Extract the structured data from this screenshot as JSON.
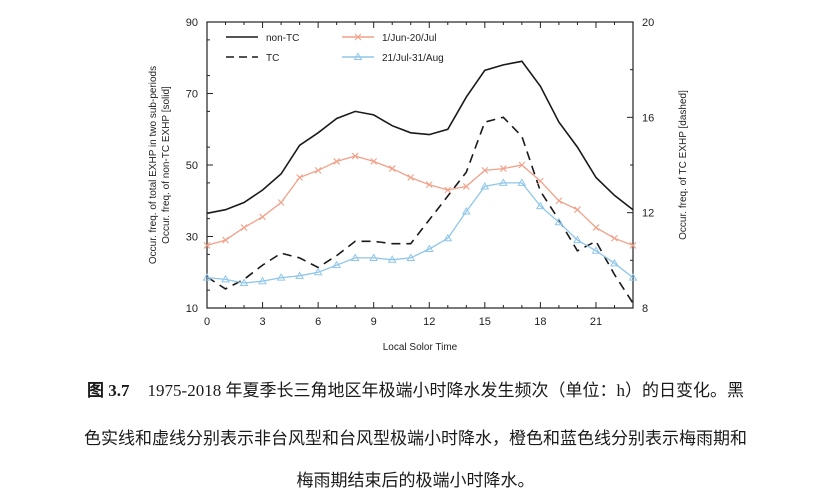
{
  "chart_data": {
    "type": "line",
    "xlabel": "Local Solor Time",
    "ylabel_left_lines": [
      "Occur. freq. of total EXHP in two sub-periods",
      "Occur. freq. of non-TC EXHP [solid]"
    ],
    "ylabel_right": "Occur. freq. of TC EXHP [dashed]",
    "xlim": [
      0,
      23
    ],
    "ylim_left": [
      10,
      90
    ],
    "ylim_right": [
      8,
      20
    ],
    "xticks": [
      0,
      3,
      6,
      9,
      12,
      15,
      18,
      21
    ],
    "yticks_left": [
      10,
      30,
      50,
      70,
      90
    ],
    "yticks_right": [
      8,
      12,
      16,
      20
    ],
    "x": [
      0,
      1,
      2,
      3,
      4,
      5,
      6,
      7,
      8,
      9,
      10,
      11,
      12,
      13,
      14,
      15,
      16,
      17,
      18,
      19,
      20,
      21,
      22,
      23
    ],
    "series": [
      {
        "name": "non-TC",
        "axis": "left",
        "color": "#1a1a1a",
        "style": "solid",
        "values": [
          36.5,
          37.5,
          39.5,
          43,
          47.5,
          55.5,
          59,
          63,
          65,
          64,
          61,
          59,
          58.5,
          60,
          69,
          76.5,
          78,
          79,
          72,
          62,
          55,
          46.5,
          41.5,
          37.5
        ]
      },
      {
        "name": "TC",
        "axis": "right",
        "color": "#1a1a1a",
        "style": "dashed",
        "values": [
          9.3,
          8.8,
          9.2,
          9.8,
          10.3,
          10.1,
          9.7,
          10.2,
          10.8,
          10.8,
          10.7,
          10.7,
          11.7,
          12.7,
          13.7,
          15.8,
          16,
          15.2,
          12.9,
          11.7,
          10.4,
          10.8,
          9.4,
          8.2
        ]
      },
      {
        "name": "1/Jun-20/Jul",
        "axis": "left",
        "color": "#f2a18a",
        "style": "solid-marker",
        "values": [
          27.5,
          29,
          32.5,
          35.5,
          39.5,
          46.5,
          48.5,
          51,
          52.5,
          51,
          49,
          46.5,
          44.5,
          43,
          44,
          48.5,
          49,
          50,
          45.5,
          40,
          37.5,
          32.5,
          29.5,
          27.5
        ]
      },
      {
        "name": "21/Jul-31/Aug",
        "axis": "left",
        "color": "#8fc6ea",
        "style": "solid-marker",
        "values": [
          18.5,
          18,
          17,
          17.5,
          18.5,
          19,
          20,
          22,
          24,
          24,
          23.5,
          24,
          26.5,
          29.5,
          37,
          44,
          45,
          45,
          38.5,
          34,
          29,
          26,
          22.5,
          18.5
        ]
      }
    ]
  },
  "caption": {
    "figure_number": "图 3.7",
    "line1": "1975-2018 年夏季长三角地区年极端小时降水发生频次（单位：h）的日变化。黑",
    "line2": "色实线和虚线分别表示非台风型和台风型极端小时降水，橙色和蓝色线分别表示梅雨期和",
    "line3": "梅雨期结束后的极端小时降水。"
  }
}
